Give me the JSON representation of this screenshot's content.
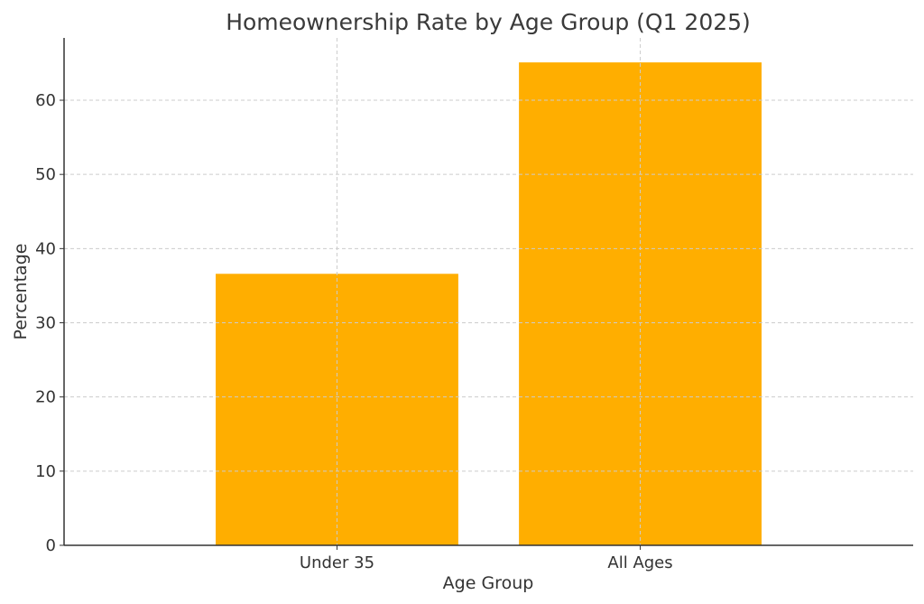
{
  "chart_data": {
    "type": "bar",
    "title": "Homeownership Rate by Age Group (Q1 2025)",
    "xlabel": "Age Group",
    "ylabel": "Percentage",
    "categories": [
      "Under 35",
      "All Ages"
    ],
    "values": [
      36.6,
      65.1
    ],
    "ylim": [
      0,
      68.4
    ],
    "yticks": [
      0,
      10,
      20,
      30,
      40,
      50,
      60
    ],
    "grid": true,
    "bar_color": "#FFAE00"
  }
}
